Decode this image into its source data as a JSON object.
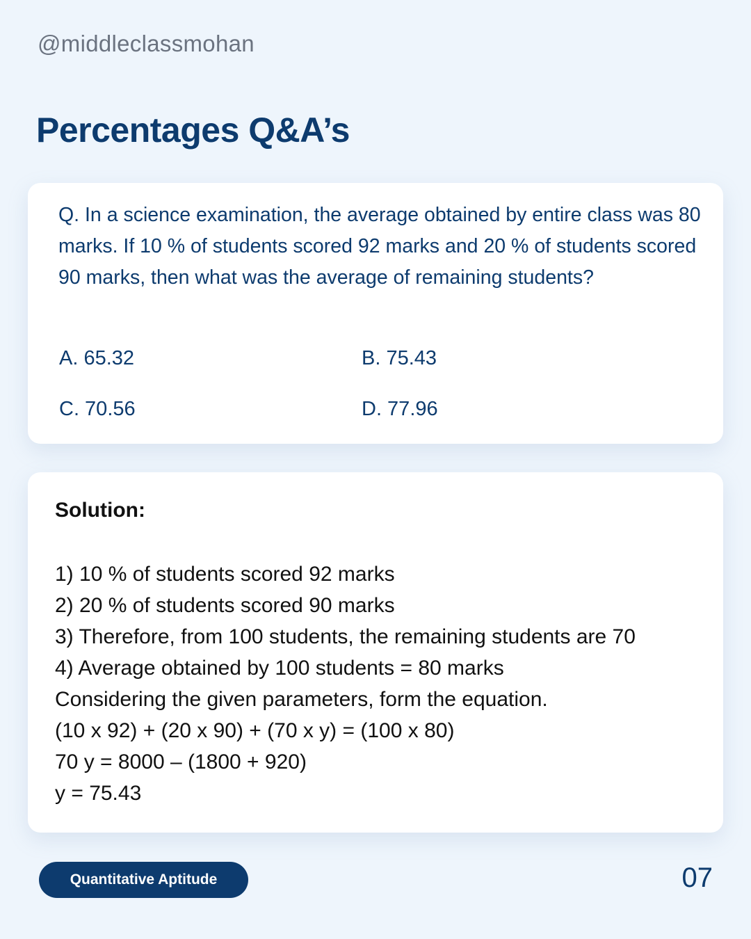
{
  "header": {
    "handle": "@middleclassmohan",
    "title": "Percentages Q&A’s"
  },
  "question": {
    "text": "Q. In a science examination, the average obtained by entire class was 80 marks. If 10 % of students scored 92 marks and 20 % of students scored 90 marks, then what was the average of remaining students?",
    "options": [
      {
        "label": "A. 65.32"
      },
      {
        "label": "B. 75.43"
      },
      {
        "label": "C. 70.56"
      },
      {
        "label": "D. 77.96"
      }
    ]
  },
  "solution": {
    "heading": "Solution:",
    "lines": [
      "1) 10 % of students scored 92 marks",
      "2) 20 % of students scored 90 marks",
      "3) Therefore, from 100 students, the remaining students are 70",
      "4) Average obtained by 100 students = 80 marks",
      "Considering the given parameters, form the equation.",
      "(10 x 92) + (20 x 90) + (70 x y) = (100 x 80)",
      "70 y = 8000 – (1800 + 920)",
      "y = 75.43"
    ]
  },
  "footer": {
    "category": "Quantitative Aptitude",
    "page_number": "07"
  },
  "colors": {
    "background": "#eef5fc",
    "primary": "#0d3b6e",
    "card": "#ffffff"
  }
}
